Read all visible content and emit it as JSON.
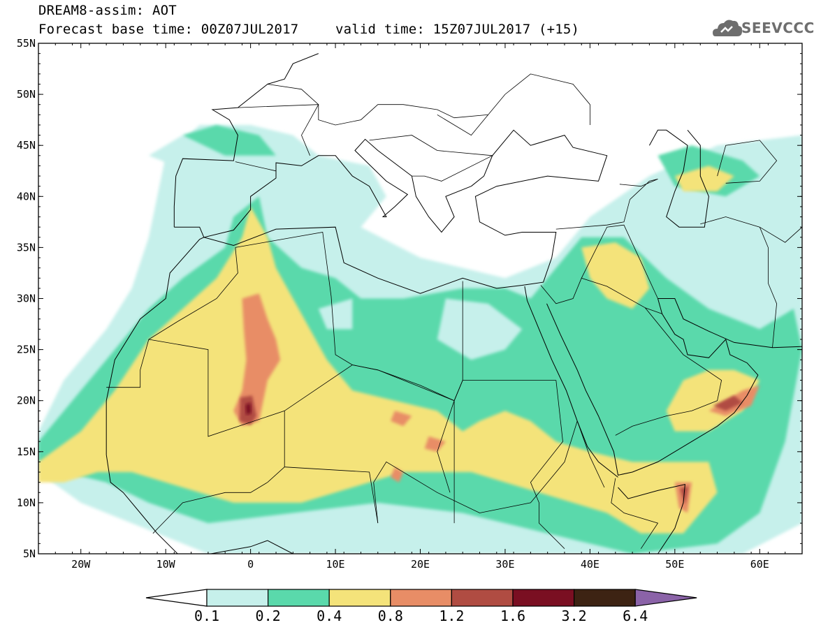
{
  "header": {
    "title": "DREAM8-assim: AOT",
    "forecast": "Forecast base time: 00Z07JUL2017",
    "valid": "valid time: 15Z07JUL2017 (+15)"
  },
  "logo": {
    "text": "SEEVCCC",
    "icon": "cloud-logo-icon",
    "color": "#6e6e6e"
  },
  "map": {
    "lon_range": [
      -25,
      65
    ],
    "lat_range": [
      5,
      55
    ],
    "lat_ticks": [
      {
        "value": 55,
        "label": "55N"
      },
      {
        "value": 50,
        "label": "50N"
      },
      {
        "value": 45,
        "label": "45N"
      },
      {
        "value": 40,
        "label": "40N"
      },
      {
        "value": 35,
        "label": "35N"
      },
      {
        "value": 30,
        "label": "30N"
      },
      {
        "value": 25,
        "label": "25N"
      },
      {
        "value": 20,
        "label": "20N"
      },
      {
        "value": 15,
        "label": "15N"
      },
      {
        "value": 10,
        "label": "10N"
      },
      {
        "value": 5,
        "label": "5N"
      }
    ],
    "lon_ticks": [
      {
        "value": -20,
        "label": "20W"
      },
      {
        "value": -10,
        "label": "10W"
      },
      {
        "value": 0,
        "label": "0"
      },
      {
        "value": 10,
        "label": "10E"
      },
      {
        "value": 20,
        "label": "20E"
      },
      {
        "value": 30,
        "label": "30E"
      },
      {
        "value": 40,
        "label": "40E"
      },
      {
        "value": 50,
        "label": "50E"
      },
      {
        "value": 60,
        "label": "60E"
      }
    ]
  },
  "colorbar": {
    "levels": [
      "0.1",
      "0.2",
      "0.4",
      "0.8",
      "1.2",
      "1.6",
      "3.2",
      "6.4"
    ],
    "colors": [
      "#c6f0eb",
      "#5ad9ab",
      "#f4e37a",
      "#e88d66",
      "#b04c42",
      "#7a0f22",
      "#3d2313",
      "#8b63a8"
    ],
    "under_color": "#ffffff"
  }
}
